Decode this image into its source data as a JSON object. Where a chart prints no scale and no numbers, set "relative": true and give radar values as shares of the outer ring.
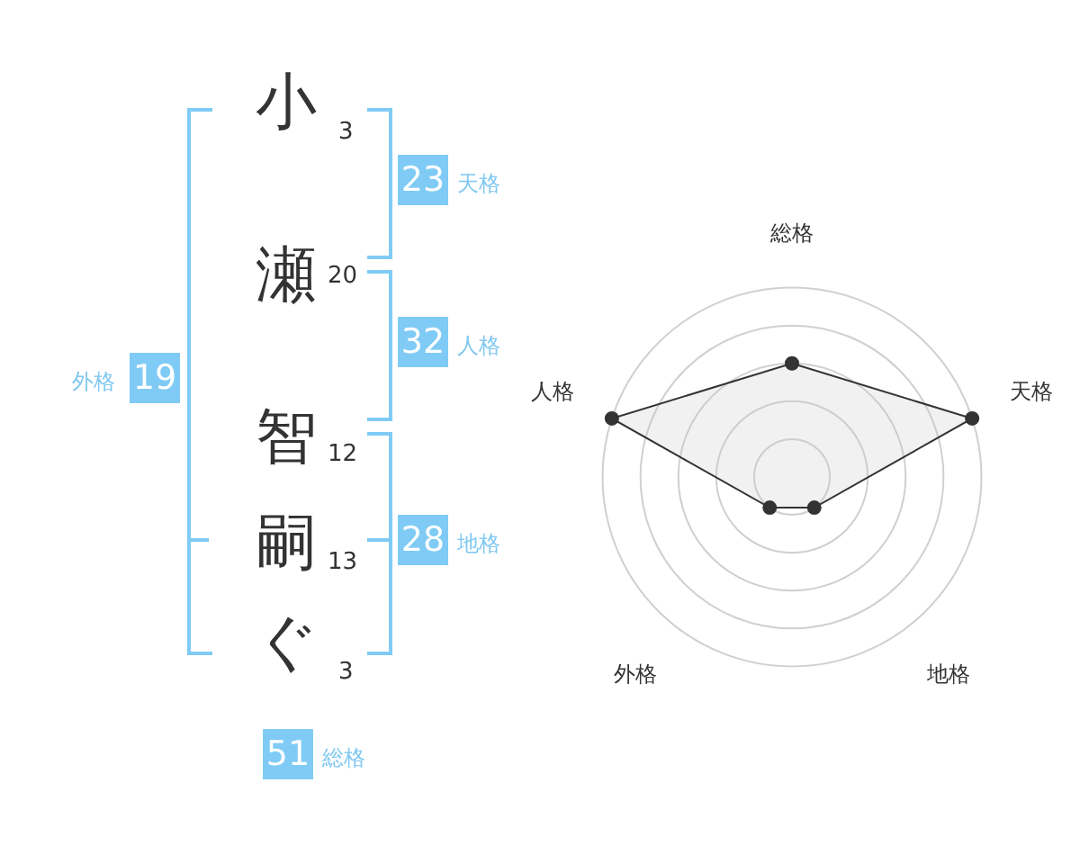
{
  "chart_data": {
    "type": "radar",
    "relative": true,
    "categories": [
      "総格",
      "天格",
      "地格",
      "外格",
      "人格"
    ],
    "series": [
      {
        "color": "#333333",
        "values": [
          0.6,
          1,
          0.2,
          0.2,
          1
        ]
      }
    ],
    "grid": true,
    "legend": false,
    "marker": "circle",
    "annotations": [
      "小",
      "3",
      "瀬",
      "20",
      "智",
      "12",
      "嗣",
      "13",
      "ぐ",
      "3",
      "23",
      "天格",
      "32",
      "人格",
      "28",
      "地格",
      "19",
      "外格",
      "51",
      "総格"
    ]
  }
}
